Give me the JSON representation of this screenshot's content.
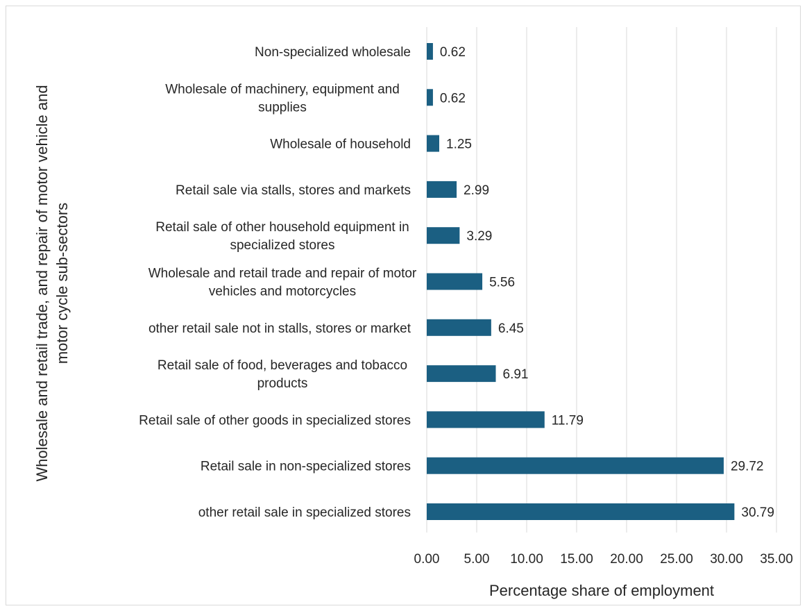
{
  "chart_data": {
    "type": "bar",
    "orientation": "horizontal",
    "xlabel": "Percentage share of employment",
    "ylabel": "Wholesale and retail trade, and repair of motor vehicle and motor cycle sub-sectors",
    "ylabel_lines": [
      "Wholesale and retail trade, and repair of motor vehicle and",
      "motor cycle sub-sectors"
    ],
    "xlim": [
      0,
      35
    ],
    "xticks": [
      "0.00",
      "5.00",
      "10.00",
      "15.00",
      "20.00",
      "25.00",
      "30.00",
      "35.00"
    ],
    "grid": "vertical",
    "bar_color": "#1b5f82",
    "categories": [
      {
        "label_lines": [
          "Non-specialized wholesale"
        ],
        "value": 0.62,
        "value_label": "0.62"
      },
      {
        "label_lines": [
          "Wholesale of machinery, equipment and",
          "supplies"
        ],
        "value": 0.62,
        "value_label": "0.62"
      },
      {
        "label_lines": [
          "Wholesale of household"
        ],
        "value": 1.25,
        "value_label": "1.25"
      },
      {
        "label_lines": [
          "Retail sale via stalls, stores and markets"
        ],
        "value": 2.99,
        "value_label": "2.99"
      },
      {
        "label_lines": [
          "Retail sale of other household equipment in",
          "specialized stores"
        ],
        "value": 3.29,
        "value_label": "3.29"
      },
      {
        "label_lines": [
          "Wholesale and retail trade and repair of motor",
          "vehicles and motorcycles"
        ],
        "value": 5.56,
        "value_label": "5.56"
      },
      {
        "label_lines": [
          "other retail sale not in stalls, stores or market"
        ],
        "value": 6.45,
        "value_label": "6.45"
      },
      {
        "label_lines": [
          "Retail sale of food, beverages and tobacco",
          "products"
        ],
        "value": 6.91,
        "value_label": "6.91"
      },
      {
        "label_lines": [
          "Retail sale of other goods in specialized stores"
        ],
        "value": 11.79,
        "value_label": "11.79"
      },
      {
        "label_lines": [
          "Retail sale in non-specialized stores"
        ],
        "value": 29.72,
        "value_label": "29.72"
      },
      {
        "label_lines": [
          "other retail sale in specialized stores"
        ],
        "value": 30.79,
        "value_label": "30.79"
      }
    ]
  }
}
